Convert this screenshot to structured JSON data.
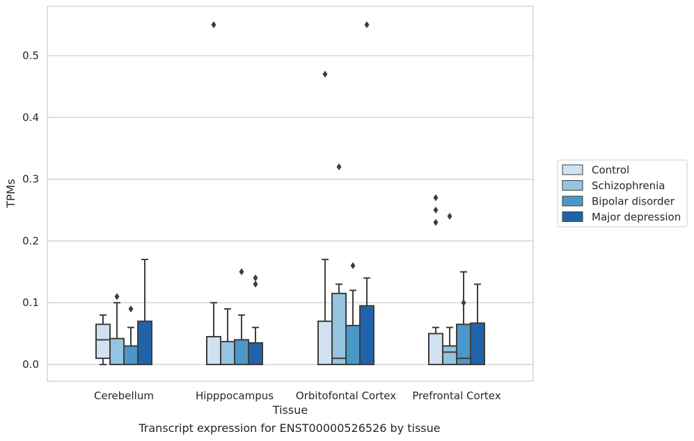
{
  "caption": "Transcript expression for ENST00000526526 by tissue",
  "chart_data": {
    "type": "box",
    "xlabel": "Tissue",
    "ylabel": "TPMs",
    "ylim": [
      -0.027,
      0.58
    ],
    "yticks": [
      0.0,
      0.1,
      0.2,
      0.3,
      0.4,
      0.5
    ],
    "ytick_labels": [
      "0.0",
      "0.1",
      "0.2",
      "0.3",
      "0.4",
      "0.5"
    ],
    "grid": true,
    "legend_position": "right",
    "categories": [
      "Cerebellum",
      "Hipppocampus",
      "Orbitofontal Cortex",
      "Prefrontal Cortex"
    ],
    "series": [
      {
        "name": "Control",
        "color": "#d0e1f2",
        "boxes": [
          {
            "whislo": 0.0,
            "q1": 0.01,
            "med": 0.04,
            "q3": 0.065,
            "whishi": 0.08,
            "fliers": []
          },
          {
            "whislo": 0.0,
            "q1": 0.0,
            "med": 0.0,
            "q3": 0.045,
            "whishi": 0.1,
            "fliers": [
              0.55
            ]
          },
          {
            "whislo": 0.0,
            "q1": 0.0,
            "med": 0.0,
            "q3": 0.07,
            "whishi": 0.17,
            "fliers": [
              0.47
            ]
          },
          {
            "whislo": 0.0,
            "q1": 0.0,
            "med": 0.0,
            "q3": 0.05,
            "whishi": 0.06,
            "fliers": [
              0.23,
              0.25,
              0.27
            ]
          }
        ]
      },
      {
        "name": "Schizophrenia",
        "color": "#94c4df",
        "boxes": [
          {
            "whislo": 0.0,
            "q1": 0.0,
            "med": 0.0,
            "q3": 0.042,
            "whishi": 0.1,
            "fliers": [
              0.11
            ]
          },
          {
            "whislo": 0.0,
            "q1": 0.0,
            "med": 0.0,
            "q3": 0.037,
            "whishi": 0.09,
            "fliers": []
          },
          {
            "whislo": 0.0,
            "q1": 0.0,
            "med": 0.01,
            "q3": 0.115,
            "whishi": 0.13,
            "fliers": [
              0.32
            ]
          },
          {
            "whislo": 0.0,
            "q1": 0.0,
            "med": 0.02,
            "q3": 0.03,
            "whishi": 0.06,
            "fliers": [
              0.24
            ]
          }
        ]
      },
      {
        "name": "Bipolar disorder",
        "color": "#4a98c9",
        "boxes": [
          {
            "whislo": 0.0,
            "q1": 0.0,
            "med": 0.0,
            "q3": 0.03,
            "whishi": 0.06,
            "fliers": [
              0.09
            ]
          },
          {
            "whislo": 0.0,
            "q1": 0.0,
            "med": 0.0,
            "q3": 0.04,
            "whishi": 0.08,
            "fliers": [
              0.15
            ]
          },
          {
            "whislo": 0.0,
            "q1": 0.0,
            "med": 0.0,
            "q3": 0.063,
            "whishi": 0.12,
            "fliers": [
              0.16
            ]
          },
          {
            "whislo": 0.0,
            "q1": 0.0,
            "med": 0.01,
            "q3": 0.065,
            "whishi": 0.15,
            "fliers": [
              0.1
            ]
          }
        ]
      },
      {
        "name": "Major depression",
        "color": "#2163aa",
        "boxes": [
          {
            "whislo": 0.0,
            "q1": 0.0,
            "med": 0.0,
            "q3": 0.07,
            "whishi": 0.17,
            "fliers": []
          },
          {
            "whislo": 0.0,
            "q1": 0.0,
            "med": 0.0,
            "q3": 0.035,
            "whishi": 0.06,
            "fliers": [
              0.13,
              0.14
            ]
          },
          {
            "whislo": 0.0,
            "q1": 0.0,
            "med": 0.0,
            "q3": 0.095,
            "whishi": 0.14,
            "fliers": [
              0.55
            ]
          },
          {
            "whislo": 0.0,
            "q1": 0.0,
            "med": 0.0,
            "q3": 0.067,
            "whishi": 0.13,
            "fliers": []
          }
        ]
      }
    ]
  }
}
